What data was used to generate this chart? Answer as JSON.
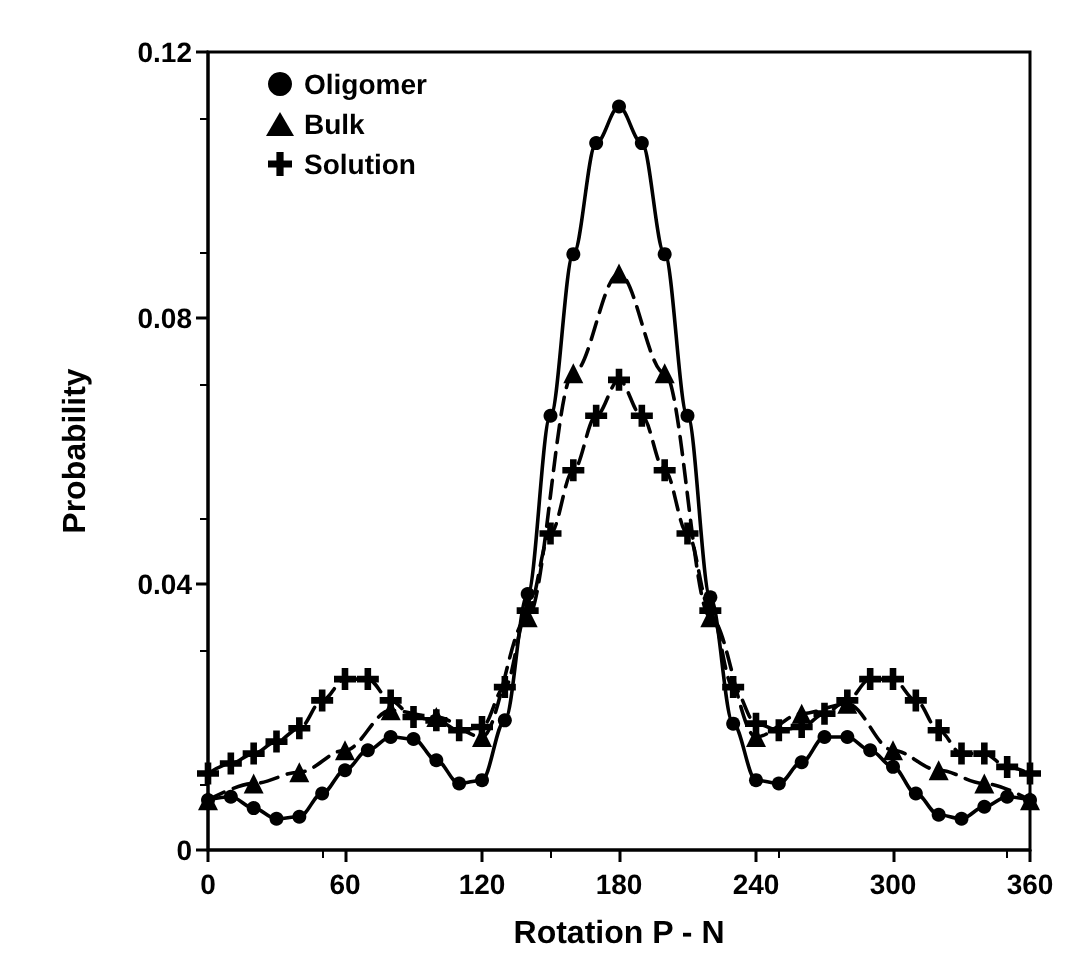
{
  "chart_data": {
    "type": "line",
    "xlabel": "Rotation P - N",
    "ylabel": "Probability",
    "xlim": [
      0,
      360
    ],
    "xticks": [
      0,
      60,
      120,
      180,
      240,
      300,
      360
    ],
    "ylim": [
      0,
      0.12
    ],
    "yticks": [
      0,
      0.04,
      0.08,
      0.12
    ],
    "grid": false,
    "legend": "top left",
    "series": [
      {
        "name": "Oligomer",
        "color": "#000000",
        "marker": "circle",
        "line_style": "solid",
        "x": [
          0,
          10,
          20,
          30,
          40,
          50,
          60,
          70,
          80,
          90,
          100,
          110,
          120,
          130,
          140,
          150,
          160,
          170,
          180,
          190,
          200,
          210,
          220,
          230,
          240,
          250,
          260,
          270,
          280,
          290,
          300,
          310,
          320,
          330,
          340,
          350,
          360
        ],
        "values": [
          0.0075,
          0.008,
          0.0063,
          0.0047,
          0.005,
          0.0085,
          0.012,
          0.015,
          0.017,
          0.0167,
          0.0135,
          0.01,
          0.0105,
          0.0195,
          0.0385,
          0.0653,
          0.0896,
          0.1063,
          0.1118,
          0.1063,
          0.0896,
          0.0653,
          0.038,
          0.019,
          0.0105,
          0.01,
          0.0132,
          0.017,
          0.017,
          0.015,
          0.0125,
          0.0085,
          0.0053,
          0.0047,
          0.0065,
          0.008,
          0.0075
        ]
      },
      {
        "name": "Bulk",
        "color": "#000000",
        "marker": "triangle",
        "line_style": "dashed",
        "x": [
          0,
          20,
          40,
          60,
          80,
          100,
          120,
          140,
          160,
          180,
          200,
          220,
          240,
          260,
          280,
          300,
          320,
          340,
          360
        ],
        "values": [
          0.0075,
          0.01,
          0.0117,
          0.015,
          0.021,
          0.02,
          0.017,
          0.035,
          0.0717,
          0.0867,
          0.0717,
          0.035,
          0.017,
          0.0205,
          0.022,
          0.015,
          0.012,
          0.01,
          0.0075
        ]
      },
      {
        "name": "Solution",
        "color": "#000000",
        "marker": "cross",
        "line_style": "dashed",
        "x": [
          0,
          10,
          20,
          30,
          40,
          50,
          60,
          70,
          80,
          90,
          100,
          110,
          120,
          130,
          140,
          150,
          160,
          170,
          180,
          190,
          200,
          210,
          220,
          230,
          240,
          250,
          260,
          270,
          280,
          290,
          300,
          310,
          320,
          330,
          340,
          350,
          360
        ],
        "values": [
          0.0115,
          0.013,
          0.0145,
          0.0163,
          0.0183,
          0.0225,
          0.0257,
          0.0257,
          0.0225,
          0.02,
          0.0195,
          0.018,
          0.0185,
          0.0245,
          0.036,
          0.0476,
          0.0571,
          0.0653,
          0.0707,
          0.0653,
          0.0571,
          0.0476,
          0.036,
          0.0245,
          0.019,
          0.018,
          0.0185,
          0.0205,
          0.0225,
          0.0257,
          0.0257,
          0.0225,
          0.018,
          0.0145,
          0.0145,
          0.0125,
          0.0115
        ]
      }
    ]
  }
}
